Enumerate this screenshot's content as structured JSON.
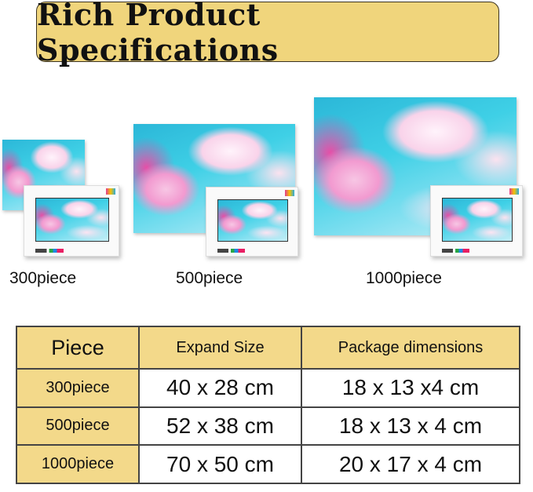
{
  "title": "Rich Product Specifications",
  "products": [
    {
      "label": "300piece"
    },
    {
      "label": "500piece"
    },
    {
      "label": "1000piece"
    }
  ],
  "table": {
    "headers": [
      "Piece",
      "Expand Size",
      "Package dimensions"
    ],
    "rows": [
      {
        "piece": "300piece",
        "expand": "40 x 28 cm",
        "package": "18 x 13 x4 cm"
      },
      {
        "piece": "500piece",
        "expand": "52 x 38 cm",
        "package": "18 x 13 x 4 cm"
      },
      {
        "piece": "1000piece",
        "expand": "70 x 50 cm",
        "package": "20 x 17 x 4 cm"
      }
    ]
  },
  "colors": {
    "accent": "#f0d57c",
    "text": "#111111"
  }
}
